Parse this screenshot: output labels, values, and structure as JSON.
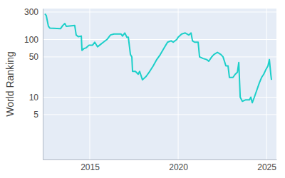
{
  "chart_data": {
    "type": "line",
    "y_label": "World Ranking",
    "color": "#1ccfc9",
    "log": "y",
    "grid": true,
    "x": [
      2012.46,
      2012.54,
      2012.66,
      2012.74,
      2013.35,
      2013.47,
      2013.59,
      2013.67,
      2014.15,
      2014.23,
      2014.35,
      2014.52,
      2014.56,
      2014.68,
      2014.8,
      2014.96,
      2015.16,
      2015.28,
      2015.44,
      2015.56,
      2015.77,
      2015.97,
      2016.17,
      2016.37,
      2016.77,
      2016.85,
      2016.98,
      2017.1,
      2017.18,
      2017.3,
      2017.38,
      2017.42,
      2017.58,
      2017.74,
      2017.82,
      2017.98,
      2018.19,
      2018.39,
      2018.59,
      2018.79,
      2018.99,
      2019.19,
      2019.4,
      2019.6,
      2019.72,
      2019.92,
      2020.0,
      2020.2,
      2020.4,
      2020.6,
      2020.73,
      2020.81,
      2020.93,
      2021.13,
      2021.21,
      2021.41,
      2021.61,
      2021.73,
      2021.9,
      2022.02,
      2022.22,
      2022.42,
      2022.54,
      2022.7,
      2022.82,
      2022.9,
      2023.1,
      2023.23,
      2023.35,
      2023.43,
      2023.51,
      2023.63,
      2023.83,
      2024.03,
      2024.11,
      2024.19,
      2024.31,
      2024.44,
      2024.6,
      2024.72,
      2024.84,
      2024.96,
      2025.08,
      2025.16,
      2025.24,
      2025.28
    ],
    "values": [
      280,
      260,
      170,
      158,
      155,
      175,
      190,
      170,
      175,
      120,
      112,
      115,
      65,
      70,
      72,
      80,
      80,
      90,
      75,
      80,
      90,
      100,
      120,
      125,
      125,
      115,
      130,
      110,
      110,
      55,
      50,
      28,
      28,
      25,
      28,
      20,
      23,
      28,
      35,
      45,
      55,
      70,
      90,
      95,
      90,
      100,
      110,
      125,
      130,
      120,
      130,
      95,
      90,
      90,
      50,
      47,
      45,
      42,
      50,
      55,
      60,
      55,
      50,
      35,
      35,
      22,
      22,
      25,
      27,
      40,
      10,
      8.5,
      9,
      9,
      10,
      8,
      10,
      13,
      18,
      22,
      25,
      30,
      35,
      45,
      25,
      20
    ],
    "xlim": [
      2012.34,
      2025.56
    ],
    "xticks": [
      2015,
      2020,
      2025
    ],
    "ylim": [
      0.83,
      345
    ],
    "yticks": [
      5,
      10,
      50,
      100,
      300
    ]
  }
}
